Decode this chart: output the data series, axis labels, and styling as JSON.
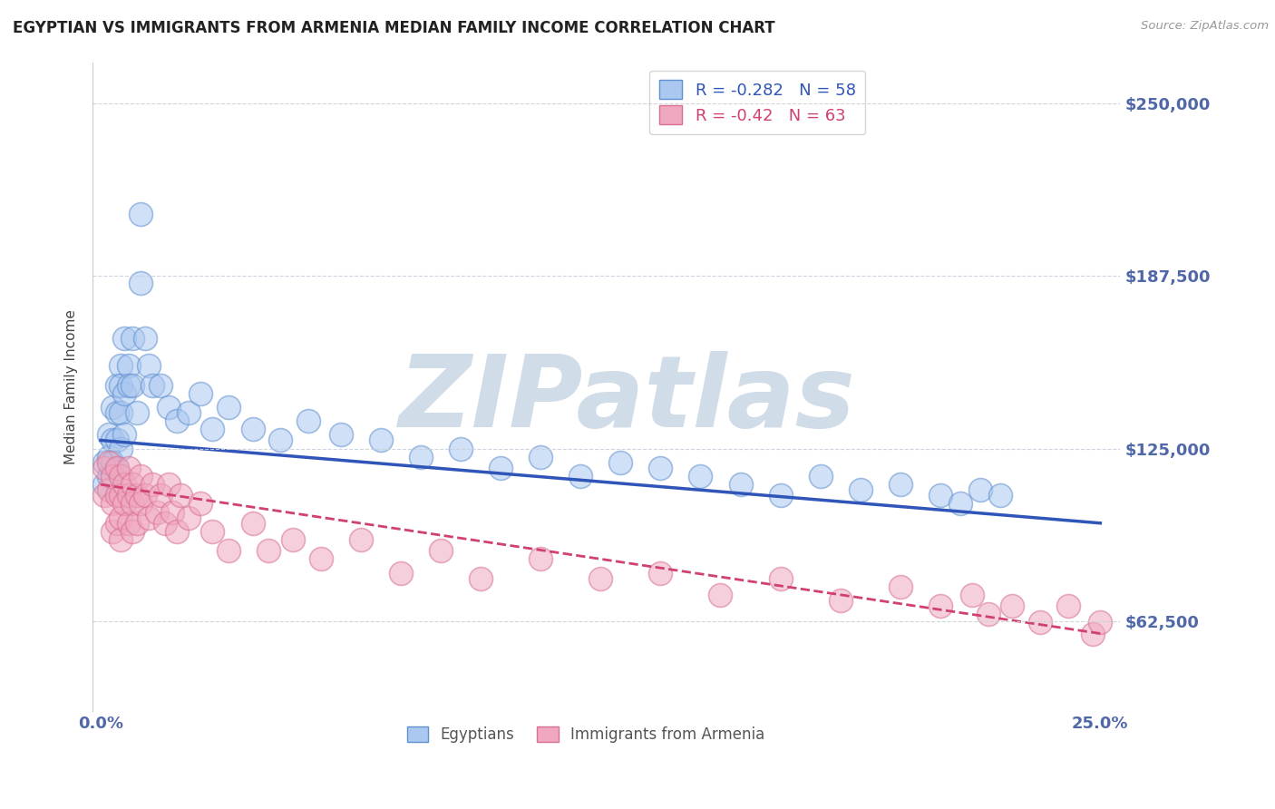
{
  "title": "EGYPTIAN VS IMMIGRANTS FROM ARMENIA MEDIAN FAMILY INCOME CORRELATION CHART",
  "source_text": "Source: ZipAtlas.com",
  "ylabel": "Median Family Income",
  "xlim": [
    -0.002,
    0.255
  ],
  "ylim": [
    30000,
    265000
  ],
  "yticks": [
    62500,
    125000,
    187500,
    250000
  ],
  "ytick_labels": [
    "$62,500",
    "$125,000",
    "$187,500",
    "$250,000"
  ],
  "xticks": [
    0.0,
    0.05,
    0.1,
    0.15,
    0.2,
    0.25
  ],
  "xtick_labels": [
    "0.0%",
    "",
    "",
    "",
    "",
    "25.0%"
  ],
  "series1_name": "Egyptians",
  "series1_R": -0.282,
  "series1_N": 58,
  "series1_color": "#aac8f0",
  "series1_edge_color": "#6090d0",
  "series1_line_color": "#3055b8",
  "series2_name": "Immigrants from Armenia",
  "series2_R": -0.42,
  "series2_N": 63,
  "series2_color": "#f0a8c0",
  "series2_edge_color": "#d87090",
  "series2_line_color": "#d04070",
  "background_color": "#ffffff",
  "grid_color": "#c8d0dc",
  "watermark": "ZIPatlas",
  "watermark_color": "#d0dce8",
  "title_fontsize": 12,
  "axis_label_color": "#5068a8",
  "series1_x": [
    0.001,
    0.001,
    0.002,
    0.002,
    0.002,
    0.003,
    0.003,
    0.003,
    0.004,
    0.004,
    0.004,
    0.004,
    0.005,
    0.005,
    0.005,
    0.005,
    0.006,
    0.006,
    0.006,
    0.007,
    0.007,
    0.008,
    0.008,
    0.009,
    0.01,
    0.01,
    0.011,
    0.012,
    0.013,
    0.015,
    0.017,
    0.019,
    0.022,
    0.025,
    0.028,
    0.032,
    0.038,
    0.045,
    0.052,
    0.06,
    0.07,
    0.08,
    0.09,
    0.1,
    0.11,
    0.12,
    0.13,
    0.14,
    0.15,
    0.16,
    0.17,
    0.18,
    0.19,
    0.2,
    0.21,
    0.215,
    0.22,
    0.225
  ],
  "series1_y": [
    120000,
    112000,
    130000,
    122000,
    115000,
    140000,
    128000,
    120000,
    148000,
    138000,
    128000,
    118000,
    155000,
    148000,
    138000,
    125000,
    165000,
    145000,
    130000,
    155000,
    148000,
    165000,
    148000,
    138000,
    210000,
    185000,
    165000,
    155000,
    148000,
    148000,
    140000,
    135000,
    138000,
    145000,
    132000,
    140000,
    132000,
    128000,
    135000,
    130000,
    128000,
    122000,
    125000,
    118000,
    122000,
    115000,
    120000,
    118000,
    115000,
    112000,
    108000,
    115000,
    110000,
    112000,
    108000,
    105000,
    110000,
    108000
  ],
  "series2_x": [
    0.001,
    0.001,
    0.002,
    0.002,
    0.003,
    0.003,
    0.003,
    0.004,
    0.004,
    0.004,
    0.005,
    0.005,
    0.005,
    0.005,
    0.006,
    0.006,
    0.007,
    0.007,
    0.007,
    0.008,
    0.008,
    0.008,
    0.009,
    0.009,
    0.01,
    0.01,
    0.011,
    0.012,
    0.013,
    0.014,
    0.015,
    0.016,
    0.017,
    0.018,
    0.019,
    0.02,
    0.022,
    0.025,
    0.028,
    0.032,
    0.038,
    0.042,
    0.048,
    0.055,
    0.065,
    0.075,
    0.085,
    0.095,
    0.11,
    0.125,
    0.14,
    0.155,
    0.17,
    0.185,
    0.2,
    0.21,
    0.218,
    0.222,
    0.228,
    0.235,
    0.242,
    0.248,
    0.25
  ],
  "series2_y": [
    118000,
    108000,
    120000,
    110000,
    115000,
    105000,
    95000,
    118000,
    108000,
    98000,
    115000,
    108000,
    100000,
    92000,
    112000,
    105000,
    118000,
    108000,
    98000,
    112000,
    105000,
    95000,
    108000,
    98000,
    115000,
    105000,
    108000,
    100000,
    112000,
    102000,
    108000,
    98000,
    112000,
    102000,
    95000,
    108000,
    100000,
    105000,
    95000,
    88000,
    98000,
    88000,
    92000,
    85000,
    92000,
    80000,
    88000,
    78000,
    85000,
    78000,
    80000,
    72000,
    78000,
    70000,
    75000,
    68000,
    72000,
    65000,
    68000,
    62000,
    68000,
    58000,
    62000
  ],
  "line1_x0": 0.0,
  "line1_y0": 128000,
  "line1_x1": 0.25,
  "line1_y1": 98000,
  "line2_x0": 0.0,
  "line2_y0": 112000,
  "line2_x1": 0.25,
  "line2_y1": 58000
}
